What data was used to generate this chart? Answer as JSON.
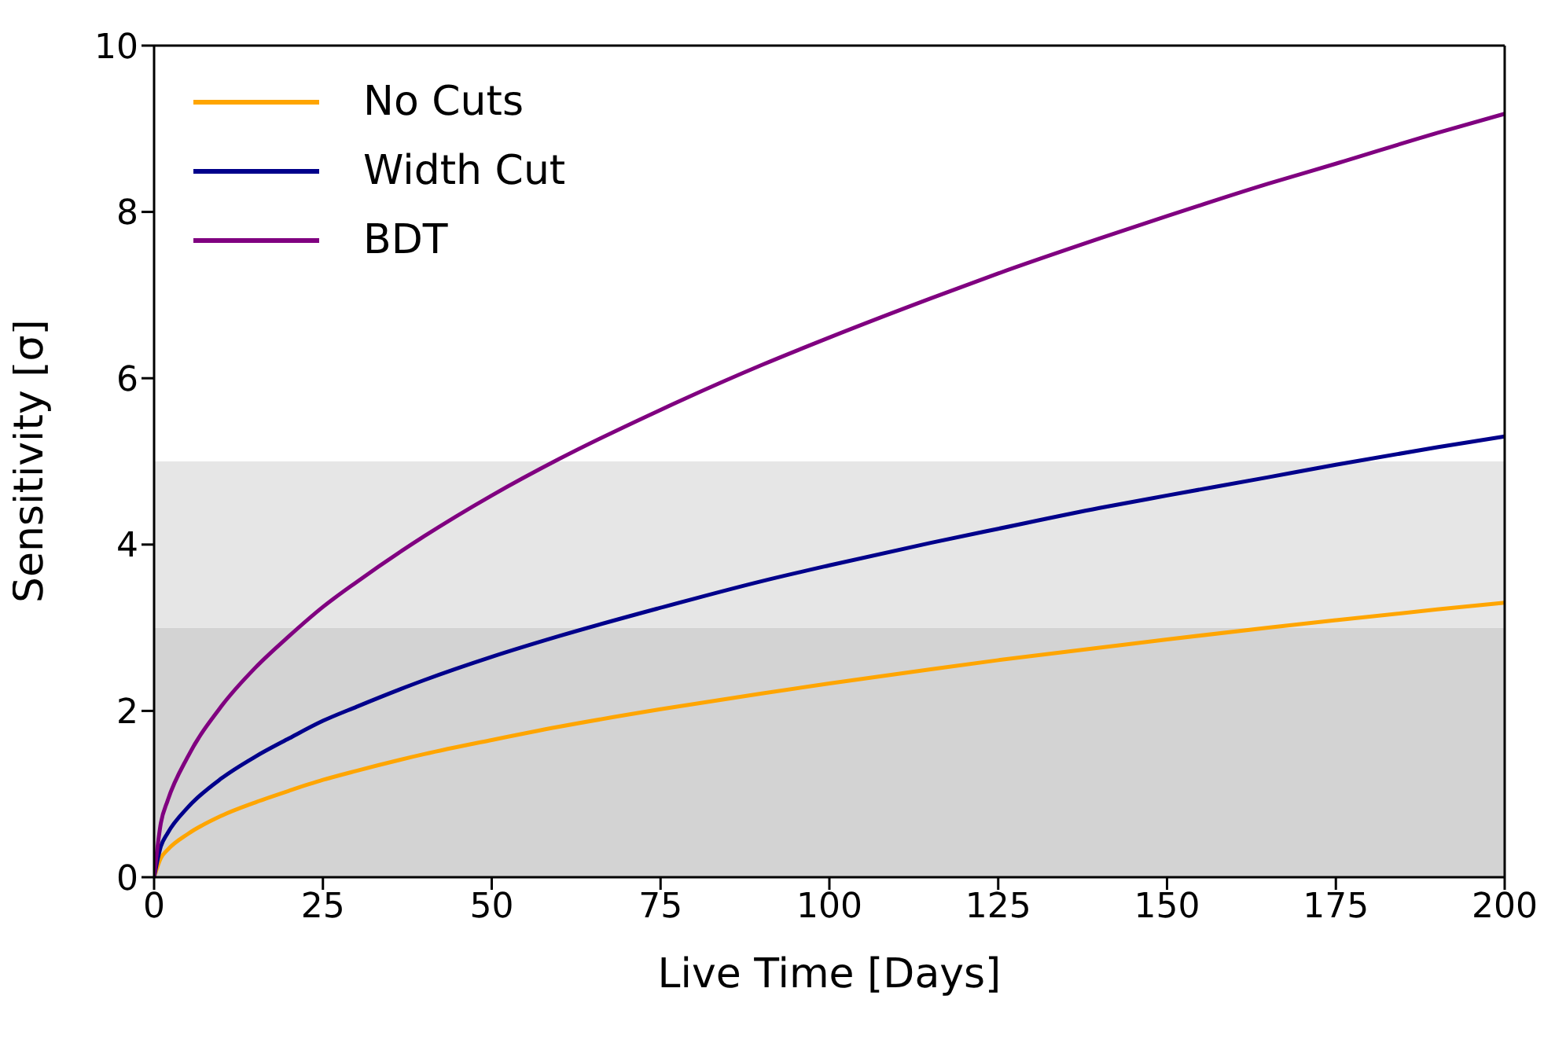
{
  "chart_data": {
    "type": "line",
    "xlabel": "Live Time [Days]",
    "ylabel": "Sensitivity [σ]",
    "x": [
      0,
      1,
      2,
      5,
      10,
      15,
      20,
      25,
      30,
      40,
      50,
      60,
      75,
      90,
      100,
      115,
      125,
      140,
      150,
      165,
      175,
      190,
      200
    ],
    "series": [
      {
        "name": "No Cuts",
        "color": "#ffa500",
        "values": [
          0,
          0.23,
          0.33,
          0.52,
          0.74,
          0.9,
          1.04,
          1.17,
          1.28,
          1.48,
          1.65,
          1.81,
          2.02,
          2.21,
          2.33,
          2.5,
          2.61,
          2.76,
          2.86,
          3.0,
          3.09,
          3.22,
          3.3
        ]
      },
      {
        "name": "Width Cut",
        "color": "#00008b",
        "values": [
          0,
          0.37,
          0.53,
          0.84,
          1.19,
          1.45,
          1.67,
          1.88,
          2.05,
          2.37,
          2.65,
          2.9,
          3.24,
          3.56,
          3.75,
          4.02,
          4.19,
          4.44,
          4.59,
          4.81,
          4.96,
          5.17,
          5.3
        ]
      },
      {
        "name": "BDT",
        "color": "#800080",
        "values": [
          0,
          0.65,
          0.92,
          1.45,
          2.06,
          2.52,
          2.9,
          3.25,
          3.55,
          4.1,
          4.59,
          5.03,
          5.62,
          6.16,
          6.49,
          6.96,
          7.26,
          7.68,
          7.95,
          8.34,
          8.58,
          8.95,
          9.18
        ]
      }
    ],
    "xlim": [
      0,
      200
    ],
    "xticks": [
      0,
      25,
      50,
      75,
      100,
      125,
      150,
      175,
      200
    ],
    "ylim": [
      0,
      10
    ],
    "yticks": [
      0,
      2,
      4,
      6,
      8,
      10
    ],
    "bands": [
      {
        "axis": "y",
        "from": 0,
        "to": 3,
        "color": "#d3d3d3"
      },
      {
        "axis": "y",
        "from": 3,
        "to": 5,
        "color": "#e6e6e6"
      }
    ],
    "legend": "top left",
    "grid": false,
    "marker": "none",
    "line_style": "solid"
  }
}
